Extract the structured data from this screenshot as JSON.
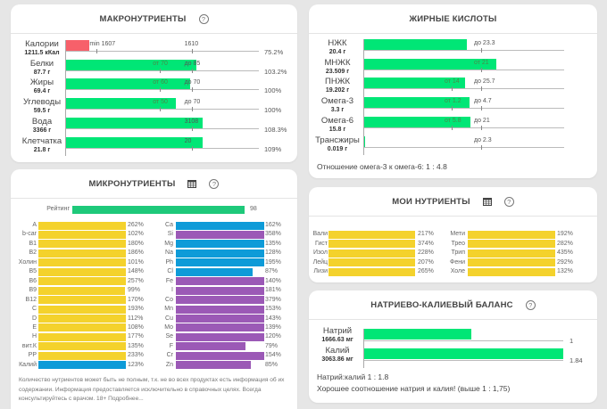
{
  "colors": {
    "green": "#00e676",
    "red": "#f7606a",
    "yellow": "#f4d22c",
    "blue": "#0e9bd8",
    "purple": "#9b59b6",
    "rating_green": "#1ec97a"
  },
  "macro": {
    "title": "МАКРОНУТРИЕНТЫ",
    "help_icon": "question-circle-icon",
    "rows": [
      {
        "name": "Калории",
        "value": "1211.5 кКал",
        "fill": 0.15,
        "color": "red",
        "low_label": "min 1607",
        "low_pos": 0.2,
        "high_label": "1610",
        "high_pos": 0.8,
        "pct": "75.2%"
      },
      {
        "name": "Белки",
        "value": "87.7 г",
        "fill": 0.83,
        "color": "green",
        "low_label": "от 70",
        "low_pos": 0.6,
        "high_label": "до 85",
        "high_pos": 0.8,
        "pct": "103.2%"
      },
      {
        "name": "Жиры",
        "value": "69.4 г",
        "fill": 0.79,
        "color": "green",
        "low_label": "от 60",
        "low_pos": 0.6,
        "high_label": "до 70",
        "high_pos": 0.8,
        "pct": "100%"
      },
      {
        "name": "Углеводы",
        "value": "59.5 г",
        "fill": 0.7,
        "color": "green",
        "low_label": "от 50",
        "low_pos": 0.6,
        "high_label": "до 70",
        "high_pos": 0.8,
        "pct": "100%"
      },
      {
        "name": "Вода",
        "value": "3366 г",
        "fill": 0.87,
        "color": "green",
        "low_label": "",
        "low_pos": null,
        "high_label": "3108",
        "high_pos": 0.8,
        "pct": "108.3%"
      },
      {
        "name": "Клетчатка",
        "value": "21.8 г",
        "fill": 0.87,
        "color": "green",
        "low_label": "",
        "low_pos": null,
        "high_label": "20",
        "high_pos": 0.8,
        "pct": "109%"
      }
    ]
  },
  "fatty": {
    "title": "ЖИРНЫЕ КИСЛОТЫ",
    "rows": [
      {
        "name": "НЖК",
        "value": "20.4 г",
        "fill": 0.7,
        "low_label": "",
        "low_pos": null,
        "high_label": "до 23.3",
        "high_pos": 0.8
      },
      {
        "name": "МНЖК",
        "value": "23.509 г",
        "fill": 0.9,
        "low_label": "от 21",
        "low_pos": 0.8,
        "high_label": "",
        "high_pos": null
      },
      {
        "name": "ПНЖК",
        "value": "19.202 г",
        "fill": 0.69,
        "low_label": "от 14",
        "low_pos": 0.6,
        "high_label": "до 25.7",
        "high_pos": 0.8
      },
      {
        "name": "Омега-3",
        "value": "3.3 г",
        "fill": 0.72,
        "low_label": "от 1.2",
        "low_pos": 0.6,
        "high_label": "до 4.7",
        "high_pos": 0.8
      },
      {
        "name": "Омега-6",
        "value": "15.8 г",
        "fill": 0.73,
        "low_label": "от 5.8",
        "low_pos": 0.6,
        "high_label": "до 21",
        "high_pos": 0.8
      },
      {
        "name": "Трансжиры",
        "value": "0.019 г",
        "fill": 0.005,
        "low_label": "",
        "low_pos": null,
        "high_label": "до 2.3",
        "high_pos": 0.8
      }
    ],
    "ratio_text": "Отношение омега-3 к омега-6: 1 : 4.8"
  },
  "micro": {
    "title": "МИКРОНУТРИЕНТЫ",
    "table_icon": "table-icon",
    "help_icon": "question-circle-icon",
    "rating_label": "Рейтинг",
    "rating_value": "98",
    "rating_fill": 0.98,
    "left": [
      {
        "name": "A",
        "pct": "262%",
        "fill": 1,
        "color": "yellow"
      },
      {
        "name": "b-car",
        "pct": "102%",
        "fill": 1,
        "color": "yellow"
      },
      {
        "name": "B1",
        "pct": "180%",
        "fill": 1,
        "color": "yellow"
      },
      {
        "name": "B2",
        "pct": "186%",
        "fill": 1,
        "color": "yellow"
      },
      {
        "name": "Холин",
        "pct": "101%",
        "fill": 1,
        "color": "yellow"
      },
      {
        "name": "B5",
        "pct": "148%",
        "fill": 1,
        "color": "yellow"
      },
      {
        "name": "B6",
        "pct": "257%",
        "fill": 1,
        "color": "yellow"
      },
      {
        "name": "B9",
        "pct": "99%",
        "fill": 0.99,
        "color": "yellow"
      },
      {
        "name": "B12",
        "pct": "170%",
        "fill": 1,
        "color": "yellow"
      },
      {
        "name": "C",
        "pct": "193%",
        "fill": 1,
        "color": "yellow"
      },
      {
        "name": "D",
        "pct": "112%",
        "fill": 1,
        "color": "yellow"
      },
      {
        "name": "E",
        "pct": "108%",
        "fill": 1,
        "color": "yellow"
      },
      {
        "name": "H",
        "pct": "177%",
        "fill": 1,
        "color": "yellow"
      },
      {
        "name": "вит.К",
        "pct": "135%",
        "fill": 1,
        "color": "yellow"
      },
      {
        "name": "PP",
        "pct": "233%",
        "fill": 1,
        "color": "yellow"
      },
      {
        "name": "Калий",
        "pct": "123%",
        "fill": 1,
        "color": "blue"
      }
    ],
    "right": [
      {
        "name": "Ca",
        "pct": "162%",
        "fill": 1,
        "color": "blue"
      },
      {
        "name": "Si",
        "pct": "358%",
        "fill": 1,
        "color": "purple"
      },
      {
        "name": "Mg",
        "pct": "135%",
        "fill": 1,
        "color": "blue"
      },
      {
        "name": "Na",
        "pct": "128%",
        "fill": 1,
        "color": "blue"
      },
      {
        "name": "Ph",
        "pct": "195%",
        "fill": 1,
        "color": "blue"
      },
      {
        "name": "Cl",
        "pct": "87%",
        "fill": 0.87,
        "color": "blue"
      },
      {
        "name": "Fe",
        "pct": "140%",
        "fill": 1,
        "color": "purple"
      },
      {
        "name": "I",
        "pct": "181%",
        "fill": 1,
        "color": "purple"
      },
      {
        "name": "Co",
        "pct": "379%",
        "fill": 1,
        "color": "purple"
      },
      {
        "name": "Mn",
        "pct": "153%",
        "fill": 1,
        "color": "purple"
      },
      {
        "name": "Cu",
        "pct": "143%",
        "fill": 1,
        "color": "purple"
      },
      {
        "name": "Mo",
        "pct": "139%",
        "fill": 1,
        "color": "purple"
      },
      {
        "name": "Se",
        "pct": "120%",
        "fill": 1,
        "color": "purple"
      },
      {
        "name": "F",
        "pct": "79%",
        "fill": 0.79,
        "color": "purple"
      },
      {
        "name": "Cr",
        "pct": "154%",
        "fill": 1,
        "color": "purple"
      },
      {
        "name": "Zn",
        "pct": "85%",
        "fill": 0.85,
        "color": "purple"
      }
    ],
    "disclaimer": "Количество нутриентов может быть не полным, т.к. не во всех продуктах есть информация об их содержании. Информация предоставляется исключительно в справочных целях. Всегда консультируйтесь с врачом. 18+ Подробнее..."
  },
  "mine": {
    "title": "МОИ НУТРИЕНТЫ",
    "table_icon": "table-icon",
    "help_icon": "question-circle-icon",
    "left": [
      {
        "name": "Вали",
        "pct": "217%",
        "fill": 1
      },
      {
        "name": "Гист",
        "pct": "374%",
        "fill": 1
      },
      {
        "name": "Изол",
        "pct": "228%",
        "fill": 1
      },
      {
        "name": "Лейц",
        "pct": "207%",
        "fill": 1
      },
      {
        "name": "Лизи",
        "pct": "265%",
        "fill": 1
      }
    ],
    "right": [
      {
        "name": "Мети",
        "pct": "192%",
        "fill": 1
      },
      {
        "name": "Трео",
        "pct": "282%",
        "fill": 1
      },
      {
        "name": "Трип",
        "pct": "435%",
        "fill": 1
      },
      {
        "name": "Фени",
        "pct": "292%",
        "fill": 1
      },
      {
        "name": "Холе",
        "pct": "132%",
        "fill": 1
      }
    ]
  },
  "nak": {
    "title": "НАТРИЕВО-КАЛИЕВЫЙ БАЛАНС",
    "help_icon": "question-circle-icon",
    "rows": [
      {
        "name": "Натрий",
        "value": "1666.63 мг",
        "fill": 0.54,
        "end_label": "1"
      },
      {
        "name": "Калий",
        "value": "3063.86 мг",
        "fill": 1.0,
        "end_label": "1.84"
      }
    ],
    "ratio_text": "Натрий:калий 1 : 1.8",
    "verdict_text": "Хорошее соотношение натрия и калия! (выше 1 : 1,75)"
  }
}
